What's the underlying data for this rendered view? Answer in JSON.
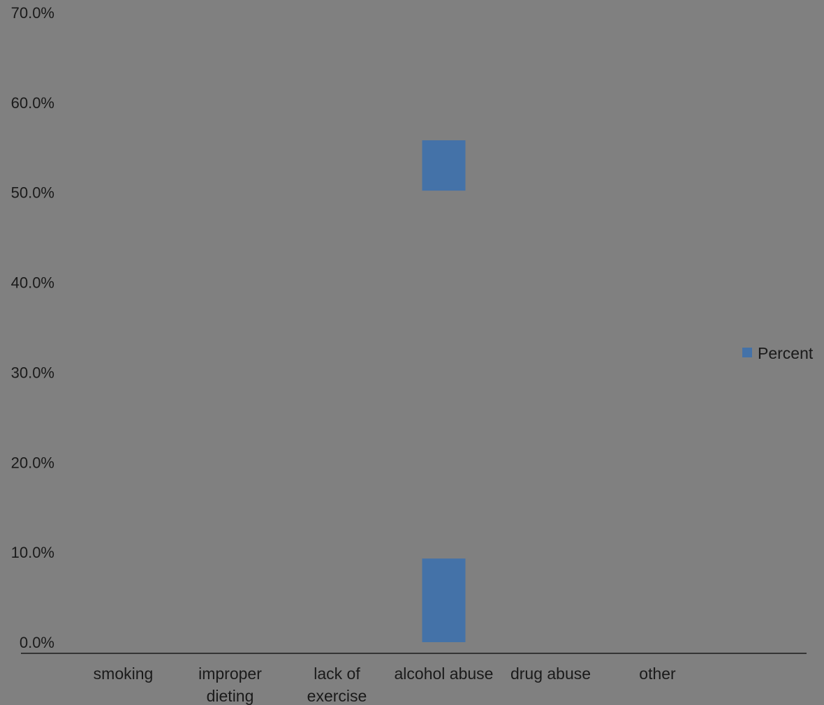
{
  "chart_data": {
    "type": "bar",
    "categories": [
      [
        "smoking"
      ],
      [
        "improper",
        "dieting"
      ],
      [
        "lack of",
        "exercise"
      ],
      [
        "alcohol abuse"
      ],
      [
        "drug abuse"
      ],
      [
        "other"
      ]
    ],
    "series": [
      {
        "name": "Percent",
        "color": "#4472a8",
        "segments": [
          null,
          null,
          null,
          [
            [
              0.0,
              9.3
            ],
            [
              50.2,
              55.8
            ]
          ],
          null,
          null
        ]
      }
    ],
    "y_ticks": [
      "0.0%",
      "10.0%",
      "20.0%",
      "30.0%",
      "40.0%",
      "50.0%",
      "60.0%",
      "70.0%"
    ],
    "ylim": [
      0,
      70
    ],
    "legend_position": "right",
    "grid": false,
    "background": "#808080",
    "axis_color": "#1a1a1a"
  }
}
